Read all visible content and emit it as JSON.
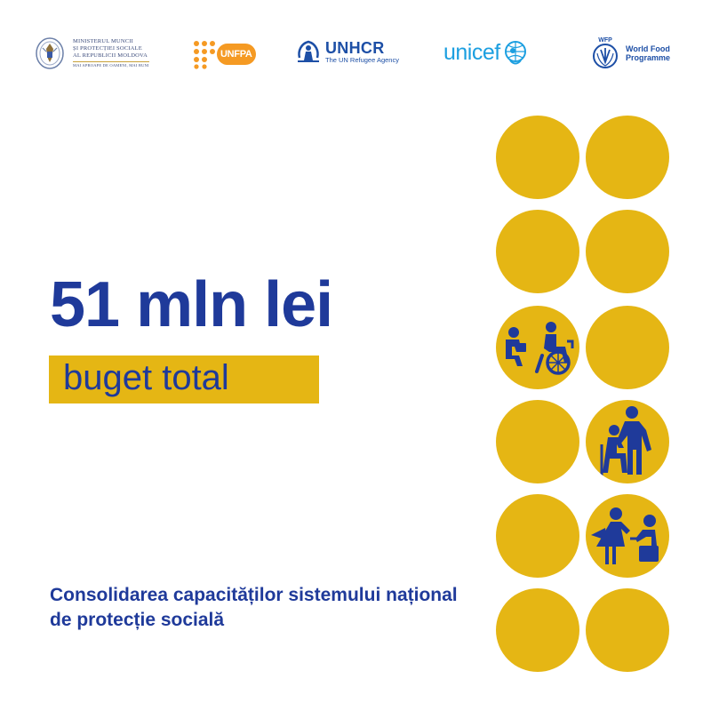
{
  "logos": {
    "ministry": {
      "lines": [
        "MINISTERUL MUNCII",
        "ȘI PROTECȚIEI SOCIALE",
        "AL REPUBLICII MOLDOVA"
      ],
      "subline": "MAI APROAPE DE OAMENI, MAI BUNI"
    },
    "unfpa": {
      "name": "UNFPA"
    },
    "unhcr": {
      "name": "UNHCR",
      "tagline": "The UN Refugee Agency"
    },
    "unicef": {
      "name": "unicef"
    },
    "wfp": {
      "abbr": "WFP",
      "line1": "World Food",
      "line2": "Programme"
    }
  },
  "headline": {
    "amount": "51 mln lei",
    "label": "buget total"
  },
  "description": "Consolidarea capacităților sistemului național de protecție socială",
  "colors": {
    "brand_blue": "#1f3a9a",
    "accent_yellow": "#e5b614",
    "unicef_blue": "#1c9fe0",
    "unfpa_orange": "#f59a23"
  },
  "circles": {
    "count": 12,
    "icons": [
      "social-worker-wheelchair-icon",
      "caregiver-elderly-icon",
      "adult-child-care-icon"
    ]
  }
}
